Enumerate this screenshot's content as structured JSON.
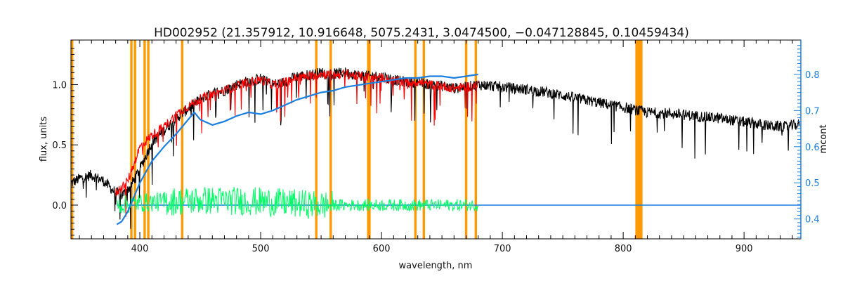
{
  "chart_data": {
    "type": "line",
    "title": "HD002952   (21.357912, 10.916648, 5075.2431, 3.0474500, −0.047128845, 0.10459434)",
    "xlabel": "wavelength, nm",
    "ylabel": "flux, units",
    "y2label": "mcont",
    "xlim": [
      343,
      947
    ],
    "ylim": [
      -0.28,
      1.37
    ],
    "y2lim": [
      0.345,
      0.895
    ],
    "xticks": [
      400,
      500,
      600,
      700,
      800,
      900
    ],
    "xtick_labels": [
      "400",
      "500",
      "600",
      "700",
      "800",
      "900"
    ],
    "yticks": [
      0.0,
      0.5,
      1.0
    ],
    "ytick_labels": [
      "0.0",
      "0.5",
      "1.0"
    ],
    "y2ticks": [
      0.4,
      0.5,
      0.6,
      0.7,
      0.8
    ],
    "y2tick_labels": [
      "0.4",
      "0.5",
      "0.6",
      "0.7",
      "0.8"
    ],
    "grid": false,
    "colors": {
      "observed": "#000000",
      "model": "#ff0000",
      "residual": "#00ff66",
      "continuum": "#1a7fe0",
      "masks": "#ff9900",
      "right_axis": "#1a7fe0"
    },
    "masked_regions_nm": [
      344,
      393,
      396,
      404,
      407,
      435,
      546,
      558,
      589,
      590,
      628,
      635,
      670,
      678,
      811,
      812,
      813,
      814,
      815
    ],
    "observed_spectrum": {
      "x": [
        343,
        350,
        360,
        370,
        378,
        385,
        392,
        400,
        410,
        420,
        430,
        440,
        450,
        460,
        470,
        480,
        490,
        500,
        510,
        520,
        530,
        540,
        550,
        560,
        570,
        580,
        590,
        600,
        610,
        620,
        630,
        640,
        650,
        660,
        670,
        680,
        690,
        700,
        720,
        740,
        760,
        780,
        800,
        820,
        840,
        860,
        880,
        900,
        920,
        935,
        945
      ],
      "y": [
        0.18,
        0.22,
        0.25,
        0.2,
        0.12,
        0.08,
        0.15,
        0.3,
        0.52,
        0.62,
        0.72,
        0.8,
        0.88,
        0.93,
        0.95,
        1.0,
        1.03,
        1.05,
        1.0,
        1.02,
        1.07,
        1.08,
        1.1,
        1.09,
        1.1,
        1.08,
        1.07,
        1.07,
        1.04,
        1.02,
        1.02,
        1.0,
        0.99,
        0.97,
        0.98,
        1.0,
        0.99,
        0.98,
        0.96,
        0.93,
        0.89,
        0.85,
        0.81,
        0.77,
        0.76,
        0.74,
        0.72,
        0.69,
        0.66,
        0.65,
        0.67
      ]
    },
    "model_spectrum": {
      "x": [
        380,
        390,
        400,
        410,
        420,
        430,
        440,
        450,
        460,
        470,
        480,
        490,
        500,
        510,
        520,
        530,
        540,
        550,
        560,
        570,
        580,
        590,
        600,
        610,
        620,
        630,
        640,
        650,
        660,
        670,
        680
      ],
      "y": [
        0.1,
        0.2,
        0.48,
        0.58,
        0.65,
        0.75,
        0.82,
        0.88,
        0.92,
        0.95,
        0.99,
        1.02,
        1.04,
        1.0,
        1.02,
        1.06,
        1.07,
        1.09,
        1.08,
        1.09,
        1.07,
        1.06,
        1.06,
        1.03,
        1.02,
        1.02,
        1.0,
        0.99,
        0.97,
        0.98,
        1.0
      ]
    },
    "continuum_mcont": {
      "x": [
        381,
        385,
        390,
        395,
        400,
        410,
        420,
        430,
        440,
        445,
        450,
        460,
        470,
        480,
        490,
        500,
        510,
        520,
        530,
        540,
        550,
        560,
        570,
        580,
        590,
        600,
        610,
        620,
        630,
        640,
        650,
        660,
        670,
        680
      ],
      "y": [
        0.385,
        0.393,
        0.42,
        0.46,
        0.5,
        0.56,
        0.6,
        0.635,
        0.675,
        0.695,
        0.675,
        0.66,
        0.67,
        0.685,
        0.695,
        0.69,
        0.7,
        0.715,
        0.73,
        0.74,
        0.75,
        0.755,
        0.765,
        0.77,
        0.775,
        0.78,
        0.785,
        0.79,
        0.79,
        0.795,
        0.795,
        0.79,
        0.795,
        0.8
      ]
    },
    "residual": {
      "x": [
        381,
        400,
        450,
        500,
        550,
        600,
        650,
        680
      ],
      "y": [
        0.0,
        0.02,
        0.04,
        0.03,
        0.0,
        0.0,
        0.0,
        0.0
      ]
    },
    "baseline": 0.0
  }
}
